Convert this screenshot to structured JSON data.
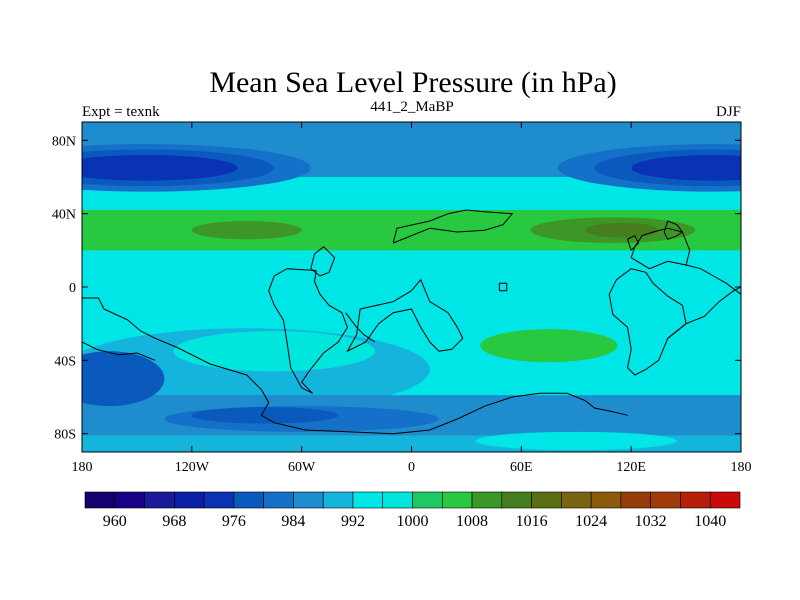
{
  "chart_data": {
    "type": "heatmap",
    "title": "Mean Sea Level Pressure (in hPa)",
    "subtitle_left": "Expt = texnk",
    "subtitle_center": "441_2_MaBP",
    "subtitle_right": "DJF",
    "x_range": [
      -180,
      180
    ],
    "y_range": [
      -90,
      90
    ],
    "x_ticks": [
      {
        "value": -180,
        "label": "180"
      },
      {
        "value": -120,
        "label": "120W"
      },
      {
        "value": -60,
        "label": "60W"
      },
      {
        "value": 0,
        "label": "0"
      },
      {
        "value": 60,
        "label": "60E"
      },
      {
        "value": 120,
        "label": "120E"
      },
      {
        "value": 180,
        "label": "180"
      }
    ],
    "y_ticks": [
      {
        "value": 80,
        "label": "80N"
      },
      {
        "value": 40,
        "label": "40N"
      },
      {
        "value": 0,
        "label": "0"
      },
      {
        "value": -40,
        "label": "40S"
      },
      {
        "value": -80,
        "label": "80S"
      }
    ],
    "colorbar": {
      "levels": [
        956,
        960,
        964,
        968,
        972,
        976,
        980,
        984,
        988,
        992,
        996,
        1000,
        1004,
        1008,
        1012,
        1016,
        1020,
        1024,
        1028,
        1032,
        1036,
        1040,
        1044
      ],
      "colors": [
        "#14006e",
        "#1a0086",
        "#1b1a98",
        "#0a1ea6",
        "#0a32b4",
        "#0a5abe",
        "#1470c8",
        "#1e8ccd",
        "#14b4dc",
        "#00e6e6",
        "#00e6dc",
        "#1ec864",
        "#28c840",
        "#3c9628",
        "#467d1e",
        "#5a6e14",
        "#7a6414",
        "#8c5a0a",
        "#963c0a",
        "#a03c0a",
        "#b41e0a",
        "#c80a0a"
      ],
      "labels": [
        {
          "value": 960,
          "text": "960"
        },
        {
          "value": 968,
          "text": "968"
        },
        {
          "value": 976,
          "text": "976"
        },
        {
          "value": 984,
          "text": "984"
        },
        {
          "value": 992,
          "text": "992"
        },
        {
          "value": 1000,
          "text": "1000"
        },
        {
          "value": 1008,
          "text": "1008"
        },
        {
          "value": 1016,
          "text": "1016"
        },
        {
          "value": 1024,
          "text": "1024"
        },
        {
          "value": 1032,
          "text": "1032"
        },
        {
          "value": 1040,
          "text": "1040"
        }
      ]
    },
    "field_regions": [
      {
        "name": "background-south-mid",
        "level": 992,
        "shape": "rect",
        "center": [
          0,
          -15
        ],
        "extent": [
          360,
          210
        ]
      },
      {
        "name": "north-band",
        "level": 984,
        "shape": "rect",
        "center": [
          0,
          75
        ],
        "extent": [
          360,
          30
        ]
      },
      {
        "name": "subtropical-ridge-north",
        "level": 1004,
        "shape": "rect",
        "center": [
          0,
          31
        ],
        "extent": [
          360,
          22
        ]
      },
      {
        "name": "subtropical-ridge-north-core",
        "level": 1008,
        "shape": "ellipse",
        "center": [
          -90,
          31
        ],
        "extent": [
          60,
          10
        ]
      },
      {
        "name": "subtropical-ridge-north-core-2",
        "level": 1008,
        "shape": "ellipse",
        "center": [
          110,
          31
        ],
        "extent": [
          90,
          14
        ]
      },
      {
        "name": "subtropical-ridge-north-peak",
        "level": 1012,
        "shape": "ellipse",
        "center": [
          115,
          31
        ],
        "extent": [
          40,
          8
        ]
      },
      {
        "name": "midlat-trough-south-ring",
        "level": 988,
        "shape": "ellipse",
        "center": [
          -90,
          -45
        ],
        "extent": [
          200,
          45
        ]
      },
      {
        "name": "low-pacific-1",
        "level": 980,
        "shape": "ellipse",
        "center": [
          -145,
          65
        ],
        "extent": [
          180,
          26
        ]
      },
      {
        "name": "low-pacific-2",
        "level": 976,
        "shape": "ellipse",
        "center": [
          -145,
          65
        ],
        "extent": [
          140,
          20
        ]
      },
      {
        "name": "low-pacific-3",
        "level": 972,
        "shape": "ellipse",
        "center": [
          -145,
          65
        ],
        "extent": [
          100,
          14
        ]
      },
      {
        "name": "low-asia-1",
        "level": 980,
        "shape": "ellipse",
        "center": [
          165,
          65
        ],
        "extent": [
          170,
          26
        ]
      },
      {
        "name": "low-asia-2",
        "level": 976,
        "shape": "ellipse",
        "center": [
          165,
          65
        ],
        "extent": [
          130,
          20
        ]
      },
      {
        "name": "low-asia-3",
        "level": 972,
        "shape": "ellipse",
        "center": [
          165,
          65
        ],
        "extent": [
          90,
          14
        ]
      },
      {
        "name": "south-pacific-high",
        "level": 996,
        "shape": "ellipse",
        "center": [
          -75,
          -35
        ],
        "extent": [
          110,
          22
        ]
      },
      {
        "name": "indian-ocean-high",
        "level": 1004,
        "shape": "ellipse",
        "center": [
          75,
          -32
        ],
        "extent": [
          75,
          18
        ]
      },
      {
        "name": "southern-trough-1",
        "level": 984,
        "shape": "rect",
        "center": [
          0,
          -70
        ],
        "extent": [
          360,
          22
        ]
      },
      {
        "name": "southern-trough-2",
        "level": 980,
        "shape": "ellipse",
        "center": [
          -60,
          -72
        ],
        "extent": [
          150,
          14
        ]
      },
      {
        "name": "southern-trough-3",
        "level": 976,
        "shape": "ellipse",
        "center": [
          -80,
          -70
        ],
        "extent": [
          80,
          9
        ]
      },
      {
        "name": "west-pacific-low",
        "level": 976,
        "shape": "ellipse",
        "center": [
          -165,
          -50
        ],
        "extent": [
          60,
          30
        ]
      },
      {
        "name": "antarctic-band",
        "level": 988,
        "shape": "rect",
        "center": [
          0,
          -86
        ],
        "extent": [
          360,
          10
        ]
      },
      {
        "name": "antarctic-high",
        "level": 992,
        "shape": "ellipse",
        "center": [
          90,
          -84
        ],
        "extent": [
          110,
          10
        ]
      }
    ],
    "coastlines": [
      [
        [
          -180,
          -6
        ],
        [
          -171,
          -6
        ],
        [
          -168,
          -12
        ],
        [
          -155,
          -18
        ],
        [
          -148,
          -24
        ],
        [
          -140,
          -28
        ],
        [
          -128,
          -33
        ],
        [
          -120,
          -37
        ],
        [
          -110,
          -42
        ],
        [
          -100,
          -45
        ],
        [
          -90,
          -48
        ],
        [
          -82,
          -56
        ],
        [
          -78,
          -63
        ],
        [
          -82,
          -70
        ],
        [
          -75,
          -74
        ],
        [
          -58,
          -78
        ],
        [
          -35,
          -79
        ],
        [
          -10,
          -80
        ],
        [
          10,
          -78
        ],
        [
          25,
          -72
        ],
        [
          40,
          -65
        ],
        [
          55,
          -60
        ],
        [
          70,
          -58
        ],
        [
          85,
          -58
        ],
        [
          95,
          -62
        ],
        [
          100,
          -66
        ],
        [
          110,
          -68
        ],
        [
          118,
          -70
        ]
      ],
      [
        [
          -180,
          -30
        ],
        [
          -172,
          -34
        ],
        [
          -160,
          -37
        ],
        [
          -150,
          -36
        ],
        [
          -140,
          -40
        ]
      ],
      [
        [
          -52,
          9
        ],
        [
          -53,
          3
        ],
        [
          -50,
          -4
        ],
        [
          -45,
          -10
        ],
        [
          -38,
          -14
        ],
        [
          -35,
          -22
        ],
        [
          -40,
          -30
        ],
        [
          -48,
          -36
        ],
        [
          -56,
          -46
        ],
        [
          -60,
          -52
        ],
        [
          -54,
          -58
        ],
        [
          -60,
          -55
        ],
        [
          -66,
          -44
        ],
        [
          -68,
          -30
        ],
        [
          -70,
          -18
        ],
        [
          -75,
          -10
        ],
        [
          -78,
          -2
        ],
        [
          -75,
          6
        ],
        [
          -68,
          10
        ],
        [
          -52,
          9
        ]
      ],
      [
        [
          -10,
          24
        ],
        [
          -8,
          32
        ],
        [
          10,
          36
        ],
        [
          20,
          40
        ],
        [
          30,
          42
        ],
        [
          40,
          41
        ],
        [
          55,
          40
        ],
        [
          50,
          34
        ],
        [
          40,
          31
        ],
        [
          25,
          30
        ],
        [
          10,
          32
        ],
        [
          -10,
          24
        ]
      ],
      [
        [
          -28,
          -12
        ],
        [
          -10,
          -8
        ],
        [
          0,
          -2
        ],
        [
          5,
          4
        ],
        [
          10,
          -8
        ],
        [
          20,
          -14
        ],
        [
          25,
          -22
        ],
        [
          28,
          -28
        ],
        [
          22,
          -34
        ],
        [
          15,
          -35
        ],
        [
          10,
          -30
        ],
        [
          5,
          -22
        ],
        [
          0,
          -12
        ],
        [
          -10,
          -14
        ],
        [
          -18,
          -20
        ],
        [
          -25,
          -30
        ],
        [
          -35,
          -35
        ],
        [
          -30,
          -26
        ],
        [
          -28,
          -12
        ]
      ],
      [
        [
          -50,
          6
        ],
        [
          -55,
          10
        ],
        [
          -53,
          18
        ],
        [
          -48,
          22
        ],
        [
          -42,
          16
        ],
        [
          -45,
          8
        ],
        [
          -50,
          6
        ]
      ],
      [
        [
          128,
          8
        ],
        [
          132,
          2
        ],
        [
          140,
          -5
        ],
        [
          148,
          -10
        ],
        [
          150,
          -20
        ],
        [
          140,
          -28
        ],
        [
          135,
          -40
        ],
        [
          128,
          -45
        ],
        [
          122,
          -48
        ],
        [
          118,
          -44
        ],
        [
          120,
          -34
        ],
        [
          118,
          -22
        ],
        [
          110,
          -15
        ],
        [
          108,
          -4
        ],
        [
          112,
          4
        ],
        [
          120,
          10
        ],
        [
          128,
          8
        ]
      ],
      [
        [
          120,
          16
        ],
        [
          122,
          22
        ],
        [
          126,
          28
        ],
        [
          132,
          30
        ],
        [
          140,
          32
        ],
        [
          148,
          30
        ],
        [
          152,
          20
        ],
        [
          150,
          12
        ],
        [
          140,
          14
        ],
        [
          130,
          10
        ],
        [
          120,
          16
        ]
      ],
      [
        [
          140,
          -28
        ],
        [
          150,
          -20
        ],
        [
          160,
          -16
        ],
        [
          168,
          -8
        ],
        [
          176,
          -2
        ],
        [
          180,
          0
        ]
      ],
      [
        [
          150,
          12
        ],
        [
          158,
          10
        ],
        [
          165,
          6
        ],
        [
          172,
          2
        ],
        [
          180,
          -4
        ]
      ],
      [
        [
          138,
          30
        ],
        [
          140,
          26
        ],
        [
          145,
          28
        ],
        [
          148,
          30
        ],
        [
          145,
          34
        ],
        [
          140,
          36
        ],
        [
          138,
          30
        ]
      ],
      [
        [
          120,
          20
        ],
        [
          124,
          24
        ],
        [
          122,
          28
        ],
        [
          118,
          26
        ],
        [
          120,
          20
        ]
      ],
      [
        [
          48,
          -2
        ],
        [
          52,
          -2
        ],
        [
          52,
          2
        ],
        [
          48,
          2
        ],
        [
          48,
          -2
        ]
      ],
      [
        [
          -36,
          -14
        ],
        [
          -30,
          -22
        ],
        [
          -26,
          -26
        ],
        [
          -20,
          -30
        ]
      ]
    ]
  }
}
